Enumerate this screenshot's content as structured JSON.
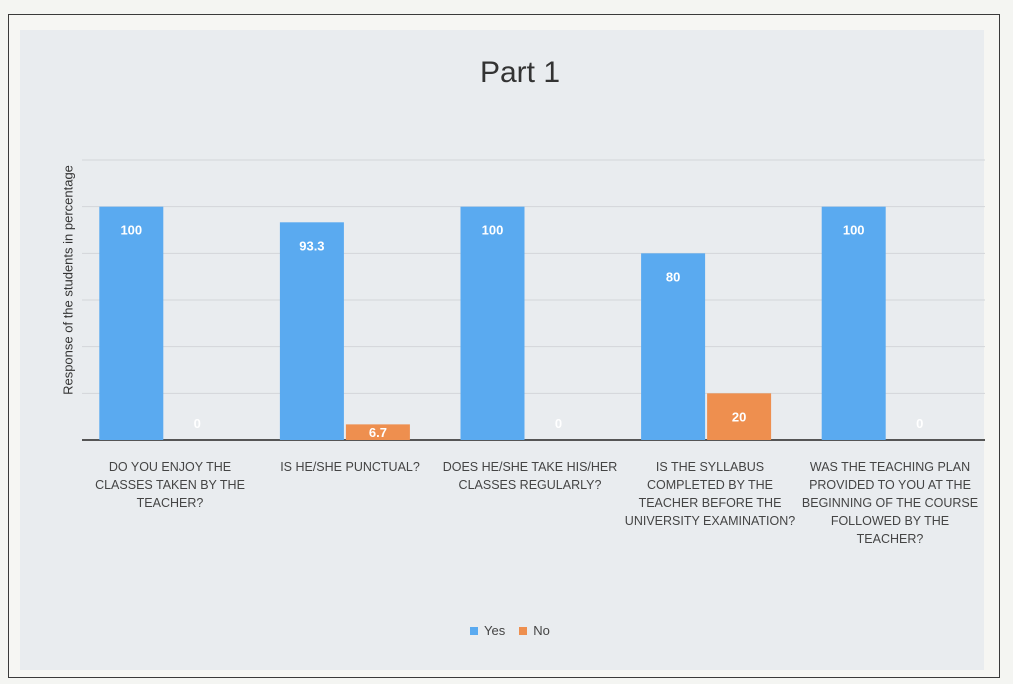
{
  "chart_data": {
    "type": "bar",
    "title": "Part 1",
    "ylabel": "Response of the students in percentage",
    "xlabel": "",
    "ylim": [
      0,
      120
    ],
    "grid": true,
    "legend_position": "bottom",
    "categories": [
      "DO YOU ENJOY THE CLASSES TAKEN BY THE TEACHER?",
      "IS HE/SHE PUNCTUAL?",
      "DOES HE/SHE TAKE HIS/HER CLASSES REGULARLY?",
      "IS THE SYLLABUS COMPLETED BY THE TEACHER BEFORE THE UNIVERSITY EXAMINATION?",
      "WAS THE TEACHING PLAN PROVIDED TO YOU AT THE BEGINNING OF THE COURSE FOLLOWED BY THE TEACHER?"
    ],
    "series": [
      {
        "name": "Yes",
        "color": "#5aaaf0",
        "values": [
          100,
          93.3,
          100,
          80,
          100
        ],
        "labels": [
          "100",
          "93.3",
          "100",
          "80",
          "100"
        ]
      },
      {
        "name": "No",
        "color": "#ee8f4f",
        "values": [
          0,
          6.7,
          0,
          20,
          0
        ],
        "labels": [
          "0",
          "6.7",
          "0",
          "20",
          "0"
        ]
      }
    ]
  }
}
